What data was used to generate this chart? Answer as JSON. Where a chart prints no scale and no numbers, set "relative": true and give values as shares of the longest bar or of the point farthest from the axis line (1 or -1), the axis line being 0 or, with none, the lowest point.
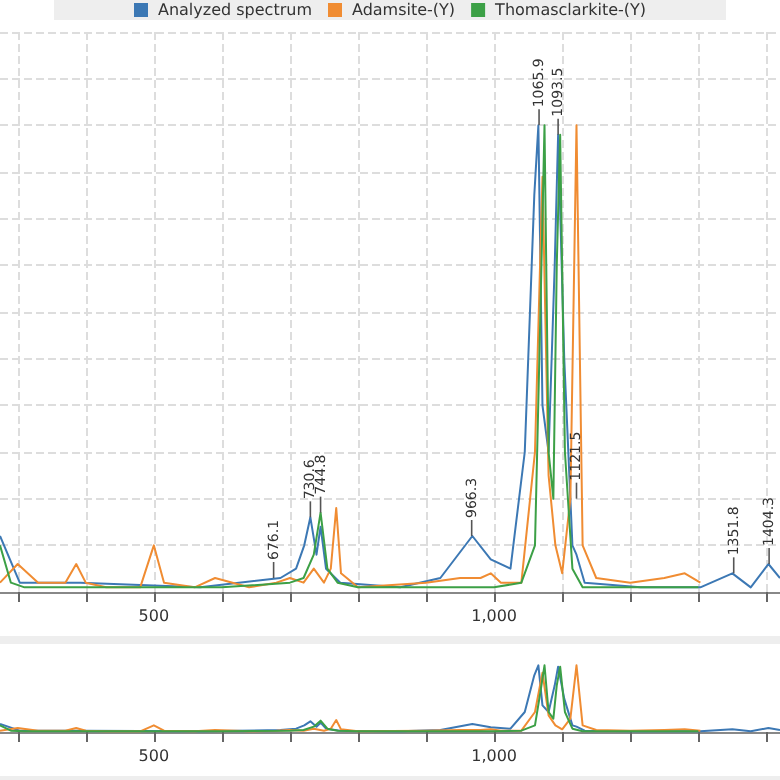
{
  "chart_data": [
    {
      "type": "line",
      "relative": true,
      "legend": "top",
      "grid": true,
      "tick_labels": "x",
      "xlim": [
        274,
        1420
      ],
      "xticks": [
        {
          "value": 300,
          "label": null
        },
        {
          "value": 400,
          "label": null
        },
        500,
        {
          "value": 600,
          "label": null
        },
        {
          "value": 700,
          "label": null
        },
        {
          "value": 800,
          "label": null
        },
        {
          "value": 900,
          "label": null
        },
        {
          "value": 1000,
          "label": "1,000"
        },
        {
          "value": 1100,
          "label": null
        },
        {
          "value": 1200,
          "label": null
        },
        {
          "value": 1300,
          "label": null
        },
        {
          "value": 1400,
          "label": null
        }
      ],
      "series": [
        {
          "name": "Analyzed spectrum",
          "color": "#3c78b4",
          "x": [
            274,
            303,
            392,
            568,
            686,
            709,
            721,
            730,
            739,
            745,
            753,
            774,
            862,
            921,
            968,
            995,
            1024,
            1045,
            1059,
            1065,
            1071,
            1080,
            1089,
            1094,
            1103,
            1115,
            1121,
            1133,
            1215,
            1303,
            1350,
            1377,
            1403,
            1420
          ],
          "values": [
            0.12,
            0.02,
            0.02,
            0.01,
            0.03,
            0.05,
            0.1,
            0.16,
            0.08,
            0.14,
            0.05,
            0.02,
            0.01,
            0.03,
            0.12,
            0.07,
            0.05,
            0.3,
            0.85,
            1.0,
            0.4,
            0.3,
            0.7,
            0.98,
            0.5,
            0.1,
            0.08,
            0.02,
            0.01,
            0.01,
            0.04,
            0.01,
            0.06,
            0.03
          ]
        },
        {
          "name": "Adamsite-(Y)",
          "color": "#f08c32",
          "x": [
            274,
            300,
            330,
            370,
            386,
            400,
            430,
            480,
            500,
            515,
            560,
            590,
            640,
            680,
            700,
            720,
            735,
            750,
            760,
            768,
            775,
            800,
            900,
            950,
            980,
            995,
            1010,
            1040,
            1060,
            1071,
            1080,
            1090,
            1100,
            1112,
            1121,
            1130,
            1150,
            1200,
            1250,
            1280,
            1303
          ],
          "values": [
            0.02,
            0.06,
            0.02,
            0.02,
            0.06,
            0.02,
            0.01,
            0.01,
            0.1,
            0.02,
            0.01,
            0.03,
            0.01,
            0.02,
            0.03,
            0.02,
            0.05,
            0.02,
            0.05,
            0.18,
            0.04,
            0.01,
            0.02,
            0.03,
            0.03,
            0.04,
            0.02,
            0.02,
            0.3,
            0.89,
            0.25,
            0.1,
            0.04,
            0.2,
            1.0,
            0.1,
            0.03,
            0.02,
            0.03,
            0.04,
            0.02
          ]
        },
        {
          "name": "Thomasclarkite-(Y)",
          "color": "#3ca046",
          "x": [
            274,
            290,
            310,
            400,
            500,
            600,
            700,
            720,
            735,
            745,
            755,
            770,
            800,
            900,
            1000,
            1040,
            1060,
            1068,
            1074,
            1080,
            1087,
            1092,
            1097,
            1104,
            1115,
            1130,
            1200,
            1300
          ],
          "values": [
            0.1,
            0.02,
            0.01,
            0.01,
            0.01,
            0.01,
            0.02,
            0.03,
            0.08,
            0.17,
            0.05,
            0.02,
            0.01,
            0.01,
            0.01,
            0.02,
            0.1,
            0.6,
            1.0,
            0.3,
            0.2,
            0.7,
            0.98,
            0.3,
            0.05,
            0.01,
            0.01,
            0.01
          ]
        }
      ],
      "annotations": [
        {
          "text": "676.1",
          "x": 676,
          "y": 0.03
        },
        {
          "text": "730.6",
          "x": 730,
          "y": 0.16
        },
        {
          "text": "744.8",
          "x": 745,
          "y": 0.17
        },
        {
          "text": "966.3",
          "x": 967,
          "y": 0.12
        },
        {
          "text": "1065.9",
          "x": 1066,
          "y": 1.0
        },
        {
          "text": "1093.5",
          "x": 1094,
          "y": 0.98
        },
        {
          "text": "1121.5",
          "x": 1121,
          "y": 0.2
        },
        {
          "text": "1351.8",
          "x": 1352,
          "y": 0.04
        },
        {
          "text": "1404.3",
          "x": 1404,
          "y": 0.06
        }
      ]
    },
    {
      "type": "line",
      "relative": true,
      "legend": false,
      "grid": false,
      "tick_labels": "x",
      "xlim": [
        274,
        1420
      ],
      "xticks": [
        {
          "value": 300,
          "label": null
        },
        {
          "value": 400,
          "label": null
        },
        500,
        {
          "value": 600,
          "label": null
        },
        {
          "value": 700,
          "label": null
        },
        {
          "value": 800,
          "label": null
        },
        {
          "value": 900,
          "label": null
        },
        {
          "value": 1000,
          "label": "1,000"
        },
        {
          "value": 1100,
          "label": null
        },
        {
          "value": 1200,
          "label": null
        },
        {
          "value": 1300,
          "label": null
        },
        {
          "value": 1400,
          "label": null
        }
      ],
      "series": [
        {
          "color": "#3c78b4",
          "x": [
            274,
            303,
            392,
            568,
            686,
            709,
            721,
            730,
            739,
            745,
            753,
            774,
            862,
            921,
            968,
            995,
            1024,
            1045,
            1059,
            1065,
            1071,
            1080,
            1089,
            1094,
            1103,
            1115,
            1121,
            1133,
            1215,
            1303,
            1350,
            1377,
            1403,
            1420
          ],
          "values": [
            0.12,
            0.02,
            0.02,
            0.01,
            0.03,
            0.05,
            0.1,
            0.16,
            0.08,
            0.14,
            0.05,
            0.02,
            0.01,
            0.03,
            0.12,
            0.07,
            0.05,
            0.3,
            0.85,
            1.0,
            0.4,
            0.3,
            0.7,
            0.98,
            0.5,
            0.1,
            0.08,
            0.02,
            0.01,
            0.01,
            0.04,
            0.01,
            0.06,
            0.03
          ]
        },
        {
          "color": "#f08c32",
          "x": [
            274,
            300,
            330,
            370,
            386,
            400,
            430,
            480,
            500,
            515,
            560,
            590,
            640,
            680,
            700,
            720,
            735,
            750,
            760,
            768,
            775,
            800,
            900,
            950,
            980,
            995,
            1010,
            1040,
            1060,
            1071,
            1080,
            1090,
            1100,
            1112,
            1121,
            1130,
            1150,
            1200,
            1250,
            1280,
            1303
          ],
          "values": [
            0.02,
            0.06,
            0.02,
            0.02,
            0.06,
            0.02,
            0.01,
            0.01,
            0.1,
            0.02,
            0.01,
            0.03,
            0.01,
            0.02,
            0.03,
            0.02,
            0.05,
            0.02,
            0.05,
            0.18,
            0.04,
            0.01,
            0.02,
            0.03,
            0.03,
            0.04,
            0.02,
            0.02,
            0.3,
            0.89,
            0.25,
            0.1,
            0.04,
            0.2,
            1.0,
            0.1,
            0.03,
            0.02,
            0.03,
            0.04,
            0.02
          ]
        },
        {
          "color": "#3ca046",
          "x": [
            274,
            290,
            310,
            400,
            500,
            600,
            700,
            720,
            735,
            745,
            755,
            770,
            800,
            900,
            1000,
            1040,
            1060,
            1068,
            1074,
            1080,
            1087,
            1092,
            1097,
            1104,
            1115,
            1130,
            1200,
            1300
          ],
          "values": [
            0.1,
            0.02,
            0.01,
            0.01,
            0.01,
            0.01,
            0.02,
            0.03,
            0.08,
            0.17,
            0.05,
            0.02,
            0.01,
            0.01,
            0.01,
            0.02,
            0.1,
            0.6,
            1.0,
            0.3,
            0.2,
            0.7,
            0.98,
            0.3,
            0.05,
            0.01,
            0.01,
            0.01
          ]
        }
      ]
    }
  ]
}
